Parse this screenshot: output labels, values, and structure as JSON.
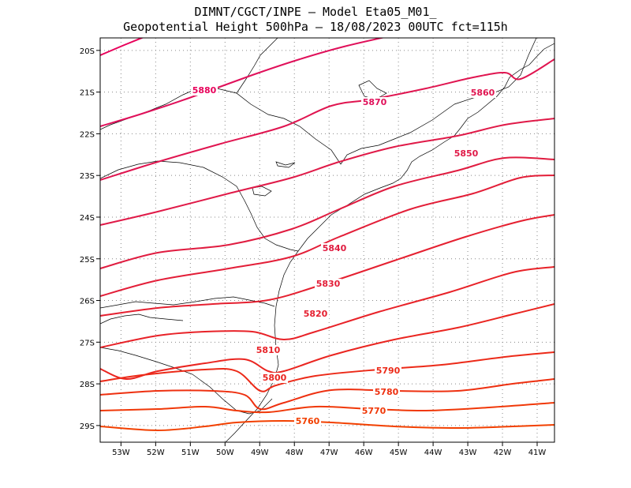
{
  "header": {
    "line1": "DIMNT/CGCT/INPE –  Model Eta05_M01_",
    "line2": "Geopotential Height 500hPa –  18/08/2023 00UTC fct=115h"
  },
  "map": {
    "lon_range": [
      -53.6,
      -40.5
    ],
    "lat_range": [
      -29.4,
      -19.7
    ],
    "lon_ticks": [
      "53W",
      "52W",
      "51W",
      "50W",
      "49W",
      "48W",
      "47W",
      "46W",
      "45W",
      "44W",
      "43W",
      "42W",
      "41W"
    ],
    "lat_ticks": [
      "20S",
      "21S",
      "22S",
      "23S",
      "24S",
      "25S",
      "26S",
      "27S",
      "28S",
      "29S"
    ]
  },
  "contours": [
    {
      "value": 5880,
      "label": "5880",
      "color": "#e8005a"
    },
    {
      "value": 5870,
      "label": "5870",
      "color": "#e0105a"
    },
    {
      "value": 5860,
      "label": "5860",
      "color": "#e01550"
    },
    {
      "value": 5850,
      "label": "5850",
      "color": "#e01a48"
    },
    {
      "value": 5840,
      "label": "5840",
      "color": "#e01c40"
    },
    {
      "value": 5830,
      "label": "5830",
      "color": "#e31e38"
    },
    {
      "value": 5820,
      "label": "5820",
      "color": "#e52030"
    },
    {
      "value": 5810,
      "label": "5810",
      "color": "#e82228"
    },
    {
      "value": 5800,
      "label": "5800",
      "color": "#ea2520"
    },
    {
      "value": 5790,
      "label": "5790",
      "color": "#ec2a18"
    },
    {
      "value": 5780,
      "label": "5780",
      "color": "#ee3010"
    },
    {
      "value": 5770,
      "label": "5770",
      "color": "#f03808"
    },
    {
      "value": 5760,
      "label": "5760",
      "color": "#f24000"
    }
  ]
}
